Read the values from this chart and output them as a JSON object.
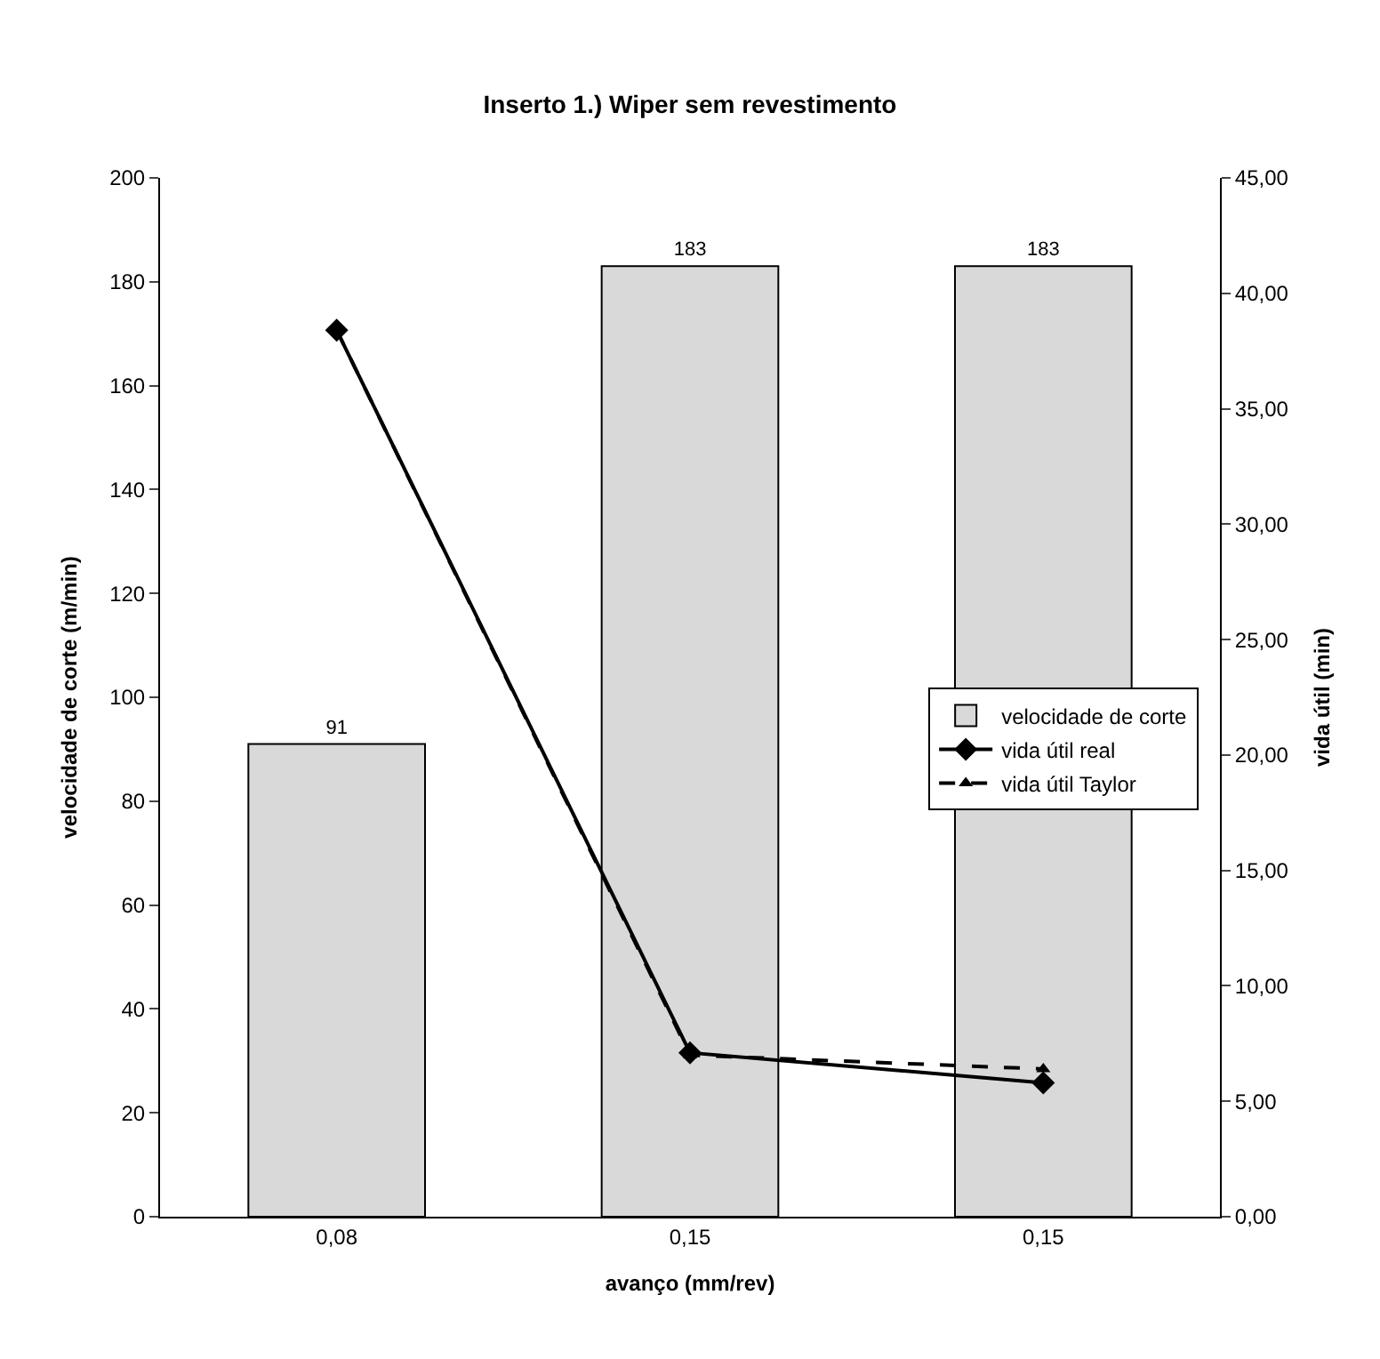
{
  "chart_data": {
    "type": "bar",
    "title": "Inserto 1.) Wiper sem revestimento",
    "xlabel": "avanço (mm/rev)",
    "ylabel": "velocidade de corte (m/min)",
    "y2label": "vida útil (min)",
    "categories": [
      "0,08",
      "0,15",
      "0,15"
    ],
    "series": [
      {
        "name": "velocidade de corte",
        "color": "#d9d9d9",
        "values": [
          91,
          183,
          183
        ],
        "value_labels": [
          "91",
          "183",
          "183"
        ]
      },
      {
        "name": "vida útil real",
        "type": "line",
        "axis": "y2",
        "color": "#000000",
        "marker": "diamond",
        "line_style": "solid",
        "values": [
          38.4,
          7.1,
          5.8
        ]
      },
      {
        "name": "vida útil Taylor",
        "type": "line",
        "axis": "y2",
        "color": "#000000",
        "marker": "triangle",
        "line_style": "dashed",
        "values": [
          38.4,
          7.0,
          6.4
        ]
      }
    ],
    "ylim": [
      0,
      200
    ],
    "yticks": [
      0,
      20,
      40,
      60,
      80,
      100,
      120,
      140,
      160,
      180,
      200
    ],
    "y2lim": [
      0,
      45
    ],
    "y2ticks": [
      {
        "value": 0,
        "label": "0,00"
      },
      {
        "value": 5,
        "label": "5,00"
      },
      {
        "value": 10,
        "label": "10,00"
      },
      {
        "value": 15,
        "label": "15,00"
      },
      {
        "value": 20,
        "label": "20,00"
      },
      {
        "value": 25,
        "label": "25,00"
      },
      {
        "value": 30,
        "label": "30,00"
      },
      {
        "value": 35,
        "label": "35,00"
      },
      {
        "value": 40,
        "label": "40,00"
      },
      {
        "value": 45,
        "label": "45,00"
      }
    ],
    "legend": "right"
  }
}
